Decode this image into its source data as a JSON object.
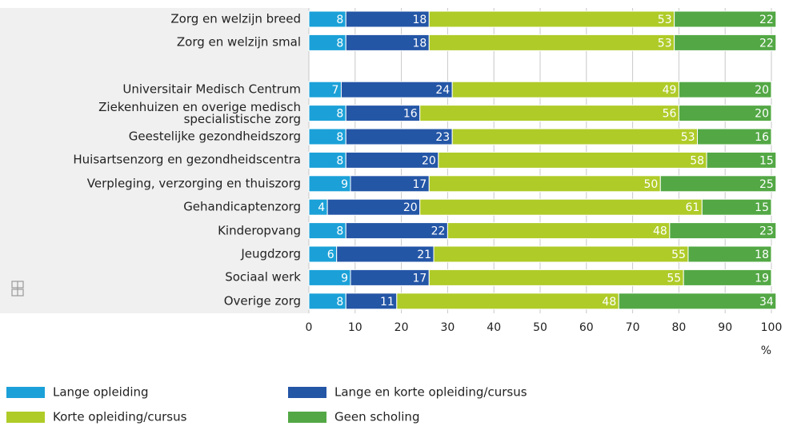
{
  "chart_data": {
    "type": "stacked-barh",
    "categories": [
      "Zorg en welzijn breed",
      "Zorg en welzijn smal",
      null,
      "Universitair Medisch Centrum",
      "Ziekenhuizen en overige medisch specialistische zorg",
      "Geestelijke gezondheidszorg",
      "Huisartsenzorg en gezondheidscentra",
      "Verpleging, verzorging en thuiszorg",
      "Gehandicaptenzorg",
      "Kinderopvang",
      "Jeugdzorg",
      "Sociaal werk",
      "Overige zorg"
    ],
    "series": [
      {
        "name": "Lange opleiding",
        "color": "#1ba1d8",
        "values": [
          8,
          8,
          null,
          7,
          8,
          8,
          8,
          9,
          4,
          8,
          6,
          9,
          8
        ]
      },
      {
        "name": "Lange en korte opleiding/cursus",
        "color": "#2456a6",
        "values": [
          18,
          18,
          null,
          24,
          16,
          23,
          20,
          17,
          20,
          22,
          21,
          17,
          11
        ]
      },
      {
        "name": "Korte opleiding/cursus",
        "color": "#afcb28",
        "values": [
          53,
          53,
          null,
          49,
          56,
          53,
          58,
          50,
          61,
          48,
          55,
          55,
          48
        ]
      },
      {
        "name": "Geen scholing",
        "color": "#53a845",
        "values": [
          22,
          22,
          null,
          20,
          20,
          16,
          15,
          25,
          15,
          23,
          18,
          19,
          34
        ]
      }
    ],
    "xlabel": "%",
    "xlim": [
      0,
      100
    ],
    "xticks": [
      0,
      10,
      20,
      30,
      40,
      50,
      60,
      70,
      80,
      90,
      100
    ],
    "grid": true
  }
}
